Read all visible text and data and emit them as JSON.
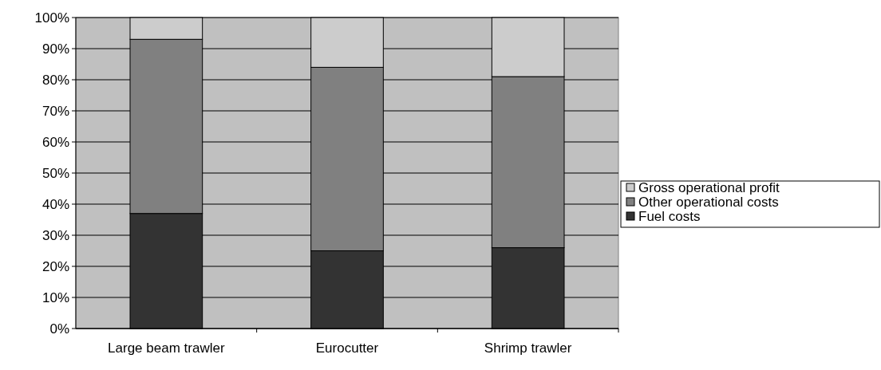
{
  "chart_data": {
    "type": "bar",
    "stacked": true,
    "categories": [
      "Large beam trawler",
      "Eurocutter",
      "Shrimp trawler"
    ],
    "series": [
      {
        "name": "Fuel costs",
        "color": "#333333",
        "values": [
          37,
          25,
          26
        ]
      },
      {
        "name": "Other operational costs",
        "color": "#808080",
        "values": [
          56,
          59,
          55
        ]
      },
      {
        "name": "Gross operational profit",
        "color": "#cccccc",
        "values": [
          7,
          16,
          19
        ]
      }
    ],
    "ylim": [
      0,
      100
    ],
    "yticks": [
      {
        "value": 0,
        "label": "0%"
      },
      {
        "value": 10,
        "label": "10%"
      },
      {
        "value": 20,
        "label": "20%"
      },
      {
        "value": 30,
        "label": "30%"
      },
      {
        "value": 40,
        "label": "40%"
      },
      {
        "value": 50,
        "label": "50%"
      },
      {
        "value": 60,
        "label": "60%"
      },
      {
        "value": 70,
        "label": "70%"
      },
      {
        "value": 80,
        "label": "80%"
      },
      {
        "value": 90,
        "label": "90%"
      },
      {
        "value": 100,
        "label": "100%"
      }
    ],
    "grid": "y",
    "legend": "right"
  }
}
